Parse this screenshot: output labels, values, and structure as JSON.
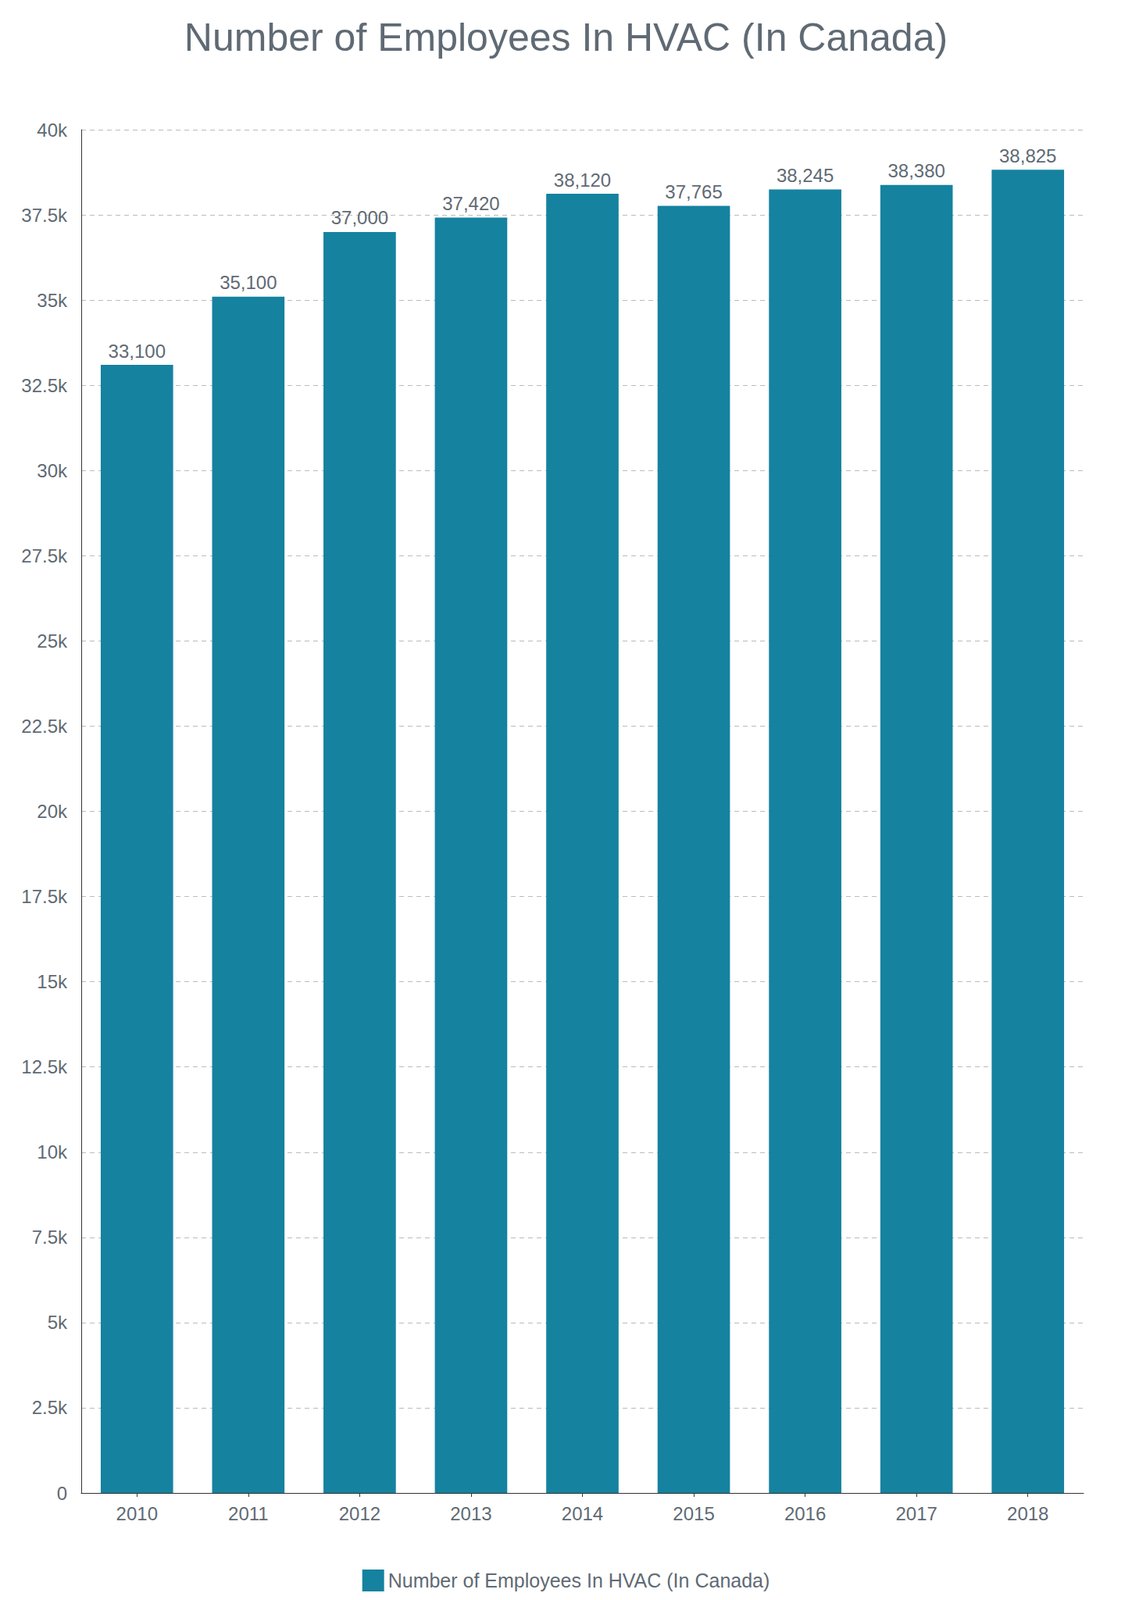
{
  "chart_data": {
    "type": "bar",
    "title": "Number of Employees In HVAC (In Canada)",
    "categories": [
      "2010",
      "2011",
      "2012",
      "2013",
      "2014",
      "2015",
      "2016",
      "2017",
      "2018"
    ],
    "series": [
      {
        "name": "Number of Employees In HVAC (In Canada)",
        "color": "#15829f",
        "values": [
          33100,
          35100,
          37000,
          37420,
          38120,
          37765,
          38245,
          38380,
          38825
        ],
        "value_labels": [
          "33,100",
          "35,100",
          "37,000",
          "37,420",
          "38,120",
          "37,765",
          "38,245",
          "38,380",
          "38,825"
        ]
      }
    ],
    "ylim": [
      0,
      40000
    ],
    "yticks": [
      0,
      {
        "value": 2500,
        "label": "2.5k"
      },
      {
        "value": 5000,
        "label": "5k"
      },
      {
        "value": 7500,
        "label": "7.5k"
      },
      {
        "value": 10000,
        "label": "10k"
      },
      {
        "value": 12500,
        "label": "12.5k"
      },
      {
        "value": 15000,
        "label": "15k"
      },
      {
        "value": 17500,
        "label": "17.5k"
      },
      {
        "value": 20000,
        "label": "20k"
      },
      {
        "value": 22500,
        "label": "22.5k"
      },
      {
        "value": 25000,
        "label": "25k"
      },
      {
        "value": 27500,
        "label": "27.5k"
      },
      {
        "value": 30000,
        "label": "30k"
      },
      {
        "value": 32500,
        "label": "32.5k"
      },
      {
        "value": 35000,
        "label": "35k"
      },
      {
        "value": 37500,
        "label": "37.5k"
      },
      {
        "value": 40000,
        "label": "40k"
      }
    ],
    "grid": true,
    "legend": "bottom",
    "data_labels": true
  }
}
